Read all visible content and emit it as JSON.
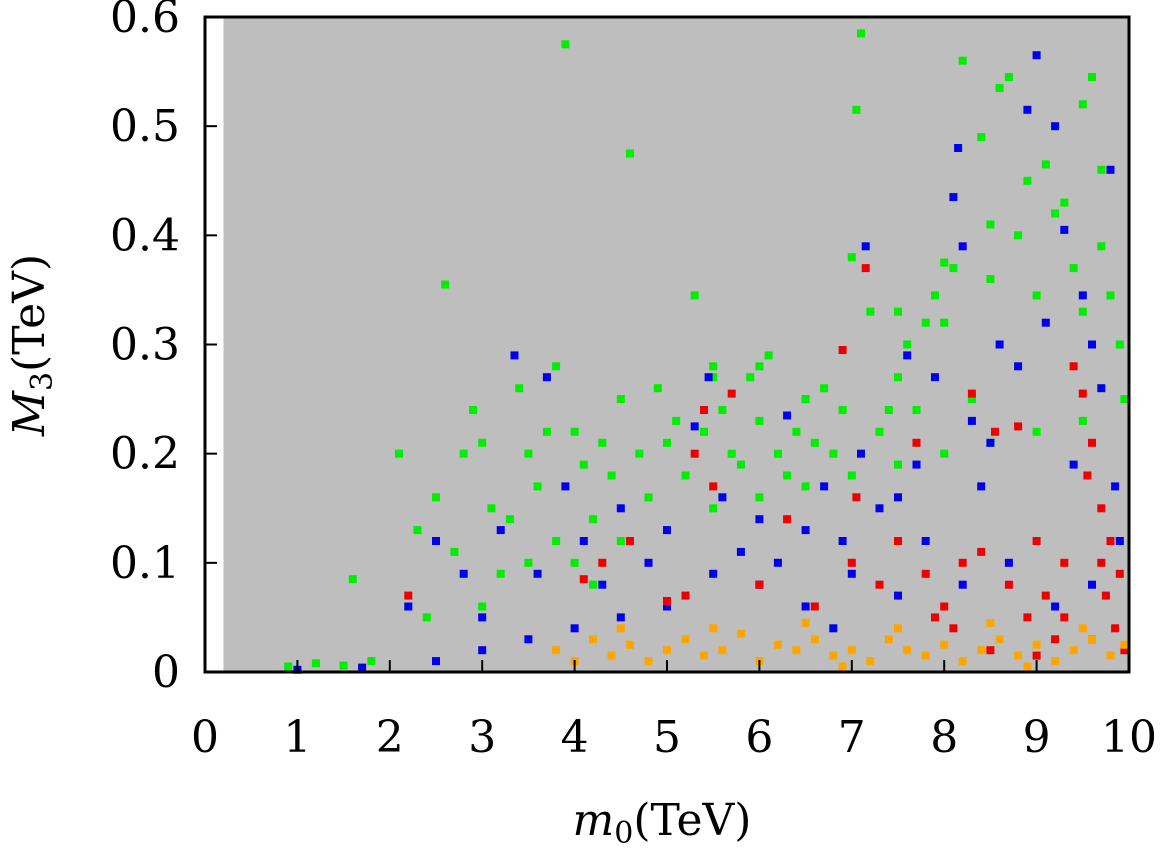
{
  "chart_data": {
    "type": "scatter",
    "title": "",
    "xlabel": {
      "symbol": "m",
      "sub": "0",
      "unit": "(TeV)"
    },
    "ylabel": {
      "symbol": "M",
      "sub": "3",
      "unit": "(TeV)"
    },
    "xlim": [
      0,
      10
    ],
    "ylim": [
      0,
      0.6
    ],
    "x_ticks": [
      0,
      1,
      2,
      3,
      4,
      5,
      6,
      7,
      8,
      9,
      10
    ],
    "x_tick_labels": [
      "0",
      "1",
      "2",
      "3",
      "4",
      "5",
      "6",
      "7",
      "8",
      "9",
      "10"
    ],
    "y_ticks": [
      0,
      0.1,
      0.2,
      0.3,
      0.4,
      0.5,
      0.6
    ],
    "y_tick_labels": [
      "0",
      "0.1",
      "0.2",
      "0.3",
      "0.4",
      "0.5",
      "0.6"
    ],
    "grid": false,
    "legend": "none",
    "background_region": {
      "name": "gray-allowed-region",
      "x_range": [
        0.2,
        10
      ],
      "y_range": [
        0,
        0.6
      ],
      "color": "#bebebe"
    },
    "series": [
      {
        "name": "green",
        "color": "#00ee00",
        "points": [
          [
            0.9,
            0.005
          ],
          [
            1.2,
            0.008
          ],
          [
            1.5,
            0.006
          ],
          [
            1.8,
            0.01
          ],
          [
            1.6,
            0.085
          ],
          [
            2.1,
            0.2
          ],
          [
            2.3,
            0.13
          ],
          [
            2.6,
            0.355
          ],
          [
            2.5,
            0.16
          ],
          [
            2.7,
            0.11
          ],
          [
            2.9,
            0.24
          ],
          [
            3.0,
            0.21
          ],
          [
            3.1,
            0.15
          ],
          [
            3.2,
            0.09
          ],
          [
            3.4,
            0.26
          ],
          [
            3.5,
            0.2
          ],
          [
            3.6,
            0.17
          ],
          [
            3.7,
            0.22
          ],
          [
            3.8,
            0.28
          ],
          [
            3.9,
            0.575
          ],
          [
            4.0,
            0.22
          ],
          [
            4.1,
            0.19
          ],
          [
            4.2,
            0.14
          ],
          [
            4.3,
            0.21
          ],
          [
            4.4,
            0.18
          ],
          [
            4.5,
            0.25
          ],
          [
            4.6,
            0.475
          ],
          [
            4.7,
            0.2
          ],
          [
            4.8,
            0.16
          ],
          [
            4.9,
            0.26
          ],
          [
            5.0,
            0.21
          ],
          [
            5.1,
            0.23
          ],
          [
            5.2,
            0.18
          ],
          [
            5.3,
            0.345
          ],
          [
            5.4,
            0.22
          ],
          [
            5.5,
            0.28
          ],
          [
            5.6,
            0.24
          ],
          [
            5.7,
            0.2
          ],
          [
            5.8,
            0.19
          ],
          [
            5.9,
            0.27
          ],
          [
            6.0,
            0.23
          ],
          [
            6.1,
            0.29
          ],
          [
            6.2,
            0.2
          ],
          [
            6.3,
            0.18
          ],
          [
            6.4,
            0.22
          ],
          [
            6.5,
            0.25
          ],
          [
            6.6,
            0.21
          ],
          [
            6.7,
            0.26
          ],
          [
            6.8,
            0.2
          ],
          [
            6.9,
            0.24
          ],
          [
            7.0,
            0.38
          ],
          [
            7.05,
            0.515
          ],
          [
            7.1,
            0.585
          ],
          [
            7.2,
            0.33
          ],
          [
            7.3,
            0.22
          ],
          [
            7.4,
            0.24
          ],
          [
            7.5,
            0.27
          ],
          [
            7.6,
            0.3
          ],
          [
            7.7,
            0.24
          ],
          [
            7.8,
            0.32
          ],
          [
            7.9,
            0.345
          ],
          [
            8.0,
            0.375
          ],
          [
            8.1,
            0.37
          ],
          [
            8.2,
            0.56
          ],
          [
            8.3,
            0.25
          ],
          [
            8.4,
            0.49
          ],
          [
            8.5,
            0.41
          ],
          [
            8.6,
            0.535
          ],
          [
            8.7,
            0.545
          ],
          [
            8.8,
            0.4
          ],
          [
            8.9,
            0.45
          ],
          [
            9.0,
            0.345
          ],
          [
            9.1,
            0.465
          ],
          [
            9.2,
            0.42
          ],
          [
            9.3,
            0.43
          ],
          [
            9.4,
            0.37
          ],
          [
            9.5,
            0.52
          ],
          [
            9.6,
            0.545
          ],
          [
            9.7,
            0.46
          ],
          [
            9.8,
            0.345
          ],
          [
            9.9,
            0.3
          ],
          [
            9.95,
            0.25
          ],
          [
            9.7,
            0.39
          ],
          [
            9.5,
            0.33
          ],
          [
            8.5,
            0.36
          ],
          [
            8.0,
            0.32
          ],
          [
            7.5,
            0.33
          ],
          [
            6.5,
            0.25
          ],
          [
            6.0,
            0.28
          ],
          [
            5.5,
            0.27
          ],
          [
            2.8,
            0.2
          ],
          [
            3.3,
            0.14
          ],
          [
            3.8,
            0.12
          ],
          [
            4.2,
            0.08
          ],
          [
            2.2,
            0.06
          ],
          [
            2.4,
            0.05
          ],
          [
            3.0,
            0.06
          ],
          [
            3.5,
            0.1
          ],
          [
            4.0,
            0.1
          ],
          [
            4.5,
            0.12
          ],
          [
            5.0,
            0.13
          ],
          [
            5.5,
            0.15
          ],
          [
            6.0,
            0.16
          ],
          [
            6.5,
            0.17
          ],
          [
            7.0,
            0.18
          ],
          [
            7.5,
            0.19
          ],
          [
            8.0,
            0.2
          ],
          [
            8.5,
            0.21
          ],
          [
            9.0,
            0.22
          ],
          [
            9.5,
            0.23
          ]
        ]
      },
      {
        "name": "blue",
        "color": "#0000ee",
        "points": [
          [
            1.0,
            0.002
          ],
          [
            1.7,
            0.004
          ],
          [
            2.2,
            0.06
          ],
          [
            2.5,
            0.12
          ],
          [
            2.8,
            0.09
          ],
          [
            3.0,
            0.05
          ],
          [
            3.2,
            0.13
          ],
          [
            3.35,
            0.29
          ],
          [
            3.6,
            0.09
          ],
          [
            3.7,
            0.27
          ],
          [
            3.9,
            0.17
          ],
          [
            4.1,
            0.12
          ],
          [
            4.3,
            0.08
          ],
          [
            4.5,
            0.15
          ],
          [
            4.8,
            0.1
          ],
          [
            5.0,
            0.13
          ],
          [
            5.3,
            0.225
          ],
          [
            5.45,
            0.27
          ],
          [
            5.6,
            0.16
          ],
          [
            5.8,
            0.11
          ],
          [
            6.0,
            0.14
          ],
          [
            6.2,
            0.1
          ],
          [
            6.3,
            0.235
          ],
          [
            6.5,
            0.13
          ],
          [
            6.7,
            0.17
          ],
          [
            6.9,
            0.12
          ],
          [
            7.1,
            0.2
          ],
          [
            7.15,
            0.39
          ],
          [
            7.3,
            0.15
          ],
          [
            7.5,
            0.16
          ],
          [
            7.6,
            0.29
          ],
          [
            7.7,
            0.19
          ],
          [
            7.8,
            0.12
          ],
          [
            7.9,
            0.27
          ],
          [
            8.1,
            0.435
          ],
          [
            8.15,
            0.48
          ],
          [
            8.2,
            0.39
          ],
          [
            8.3,
            0.23
          ],
          [
            8.4,
            0.17
          ],
          [
            8.5,
            0.21
          ],
          [
            8.6,
            0.3
          ],
          [
            8.8,
            0.28
          ],
          [
            8.9,
            0.515
          ],
          [
            9.0,
            0.565
          ],
          [
            9.1,
            0.32
          ],
          [
            9.2,
            0.5
          ],
          [
            9.3,
            0.405
          ],
          [
            9.4,
            0.19
          ],
          [
            9.5,
            0.345
          ],
          [
            9.6,
            0.3
          ],
          [
            9.7,
            0.26
          ],
          [
            9.8,
            0.46
          ],
          [
            9.85,
            0.17
          ],
          [
            9.9,
            0.12
          ],
          [
            9.6,
            0.08
          ],
          [
            9.2,
            0.06
          ],
          [
            8.7,
            0.1
          ],
          [
            8.2,
            0.08
          ],
          [
            7.5,
            0.07
          ],
          [
            7.0,
            0.09
          ],
          [
            6.5,
            0.06
          ],
          [
            6.0,
            0.08
          ],
          [
            5.5,
            0.09
          ],
          [
            5.0,
            0.06
          ],
          [
            4.5,
            0.05
          ],
          [
            4.0,
            0.04
          ],
          [
            3.5,
            0.03
          ],
          [
            3.0,
            0.02
          ],
          [
            2.5,
            0.01
          ],
          [
            6.8,
            0.04
          ]
        ]
      },
      {
        "name": "red",
        "color": "#ee0000",
        "points": [
          [
            2.2,
            0.07
          ],
          [
            4.1,
            0.085
          ],
          [
            4.3,
            0.1
          ],
          [
            4.6,
            0.12
          ],
          [
            5.0,
            0.065
          ],
          [
            5.2,
            0.07
          ],
          [
            5.3,
            0.2
          ],
          [
            5.4,
            0.24
          ],
          [
            5.5,
            0.17
          ],
          [
            5.7,
            0.255
          ],
          [
            6.0,
            0.08
          ],
          [
            6.3,
            0.14
          ],
          [
            6.6,
            0.06
          ],
          [
            6.9,
            0.295
          ],
          [
            7.0,
            0.1
          ],
          [
            7.05,
            0.16
          ],
          [
            7.15,
            0.37
          ],
          [
            7.3,
            0.08
          ],
          [
            7.5,
            0.12
          ],
          [
            7.7,
            0.21
          ],
          [
            7.8,
            0.09
          ],
          [
            8.0,
            0.06
          ],
          [
            8.1,
            0.04
          ],
          [
            8.3,
            0.255
          ],
          [
            8.4,
            0.11
          ],
          [
            8.55,
            0.22
          ],
          [
            8.7,
            0.08
          ],
          [
            8.8,
            0.225
          ],
          [
            8.9,
            0.05
          ],
          [
            9.0,
            0.12
          ],
          [
            9.1,
            0.07
          ],
          [
            9.2,
            0.03
          ],
          [
            9.3,
            0.1
          ],
          [
            9.4,
            0.28
          ],
          [
            9.5,
            0.255
          ],
          [
            9.55,
            0.18
          ],
          [
            9.6,
            0.21
          ],
          [
            9.7,
            0.15
          ],
          [
            9.75,
            0.07
          ],
          [
            9.8,
            0.12
          ],
          [
            9.85,
            0.04
          ],
          [
            9.9,
            0.09
          ],
          [
            9.95,
            0.02
          ],
          [
            8.5,
            0.02
          ],
          [
            9.0,
            0.015
          ],
          [
            9.6,
            0.03
          ],
          [
            8.2,
            0.1
          ],
          [
            7.9,
            0.05
          ],
          [
            9.3,
            0.05
          ],
          [
            9.7,
            0.1
          ]
        ]
      },
      {
        "name": "orange",
        "color": "#ffa500",
        "points": [
          [
            3.8,
            0.02
          ],
          [
            4.0,
            0.01
          ],
          [
            4.2,
            0.03
          ],
          [
            4.4,
            0.015
          ],
          [
            4.6,
            0.025
          ],
          [
            4.8,
            0.01
          ],
          [
            5.0,
            0.02
          ],
          [
            5.2,
            0.03
          ],
          [
            5.4,
            0.015
          ],
          [
            5.6,
            0.02
          ],
          [
            5.8,
            0.035
          ],
          [
            6.0,
            0.01
          ],
          [
            6.2,
            0.025
          ],
          [
            6.4,
            0.02
          ],
          [
            6.6,
            0.03
          ],
          [
            6.8,
            0.015
          ],
          [
            7.0,
            0.02
          ],
          [
            7.2,
            0.01
          ],
          [
            7.4,
            0.03
          ],
          [
            7.6,
            0.02
          ],
          [
            7.8,
            0.015
          ],
          [
            8.0,
            0.025
          ],
          [
            8.2,
            0.01
          ],
          [
            8.4,
            0.02
          ],
          [
            8.6,
            0.03
          ],
          [
            8.8,
            0.015
          ],
          [
            9.0,
            0.025
          ],
          [
            9.2,
            0.01
          ],
          [
            9.4,
            0.02
          ],
          [
            9.6,
            0.03
          ],
          [
            9.8,
            0.015
          ],
          [
            9.95,
            0.025
          ],
          [
            4.5,
            0.04
          ],
          [
            5.5,
            0.04
          ],
          [
            6.5,
            0.045
          ],
          [
            7.5,
            0.04
          ],
          [
            8.5,
            0.045
          ],
          [
            9.5,
            0.04
          ],
          [
            6.9,
            0.005
          ],
          [
            8.9,
            0.005
          ]
        ]
      }
    ]
  }
}
